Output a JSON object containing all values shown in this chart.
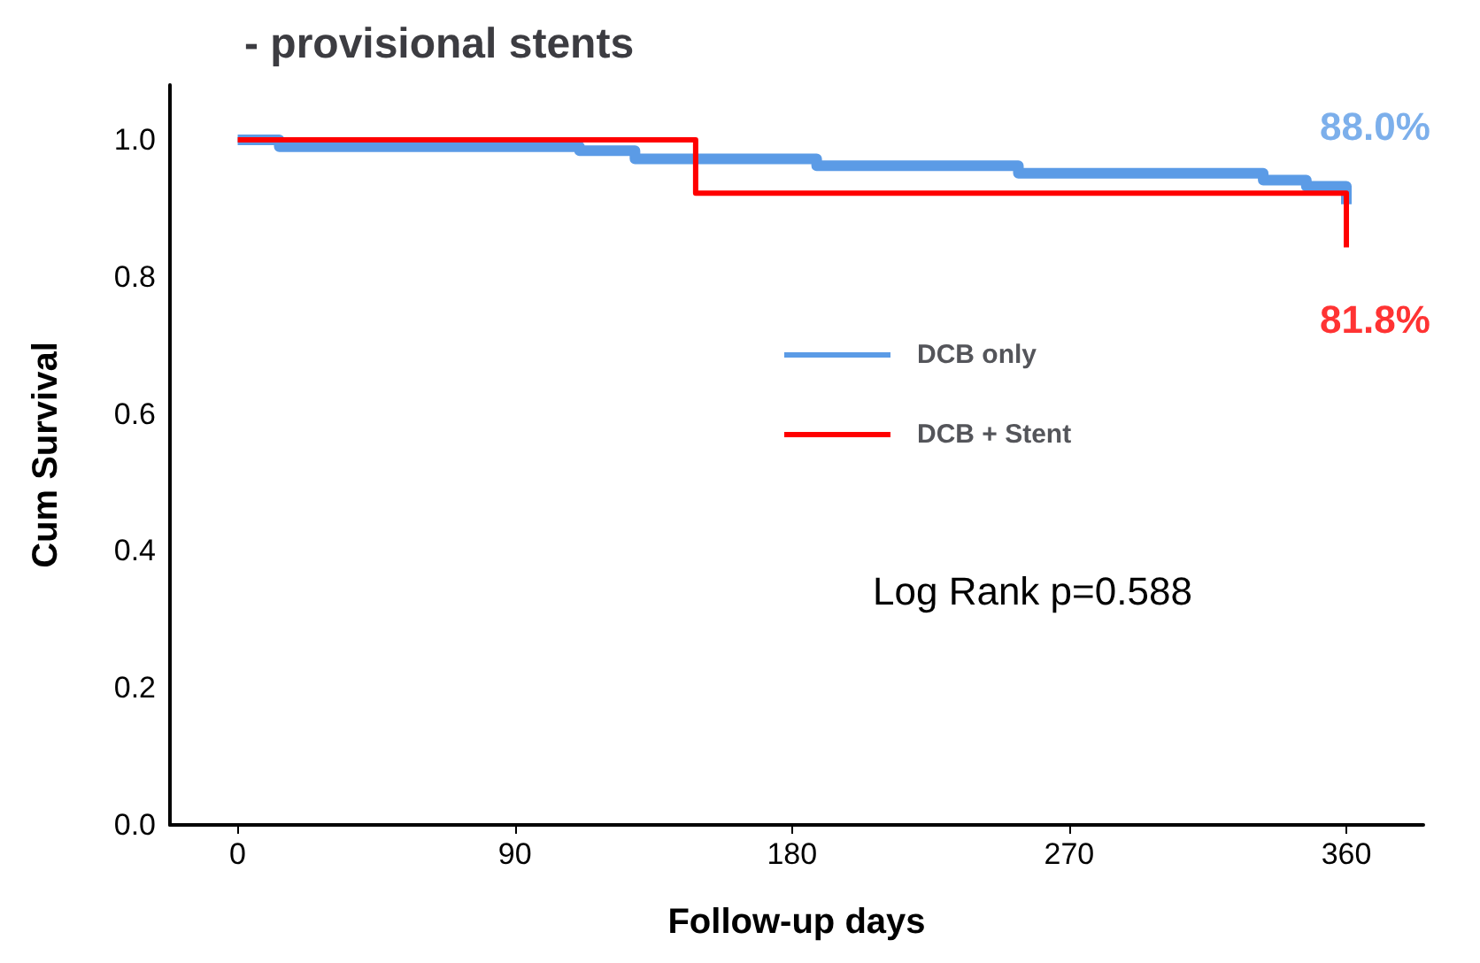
{
  "chart_data": {
    "type": "step",
    "title": "- provisional stents",
    "xlabel": "Follow-up days",
    "ylabel": "Cum Survival",
    "xlim": [
      -22,
      385
    ],
    "xticks": [
      0,
      90,
      180,
      270,
      360
    ],
    "ylim": [
      0,
      1.08
    ],
    "yticks": [
      {
        "value": 0,
        "label": "0.0"
      },
      {
        "value": 0.2,
        "label": "0.2"
      },
      {
        "value": 0.4,
        "label": "0.4"
      },
      {
        "value": 0.6,
        "label": "0.6"
      },
      {
        "value": 0.8,
        "label": "0.8"
      },
      {
        "value": 1,
        "label": "1.0"
      }
    ],
    "series": [
      {
        "name": "DCB only",
        "color": "#5b9be6",
        "x": [
          0,
          13.5,
          111,
          129,
          188,
          253.5,
          333,
          347,
          360
        ],
        "values": [
          1.0,
          0.99,
          0.984,
          0.972,
          0.962,
          0.951,
          0.941,
          0.932,
          0.906
        ]
      },
      {
        "name": "DCB + Stent",
        "color": "#ff0000",
        "x": [
          0,
          148.7,
          360
        ],
        "values": [
          1.0,
          0.922,
          0.843
        ]
      }
    ],
    "annotations": [
      {
        "text": "88.0%",
        "x": 360,
        "y": 0.906
      },
      {
        "text": "81.8%",
        "x": 360,
        "y": 0.843
      },
      "Log Rank p=0.588"
    ],
    "legend": "right",
    "grid": false,
    "marker": "none",
    "line_style": "solid"
  }
}
